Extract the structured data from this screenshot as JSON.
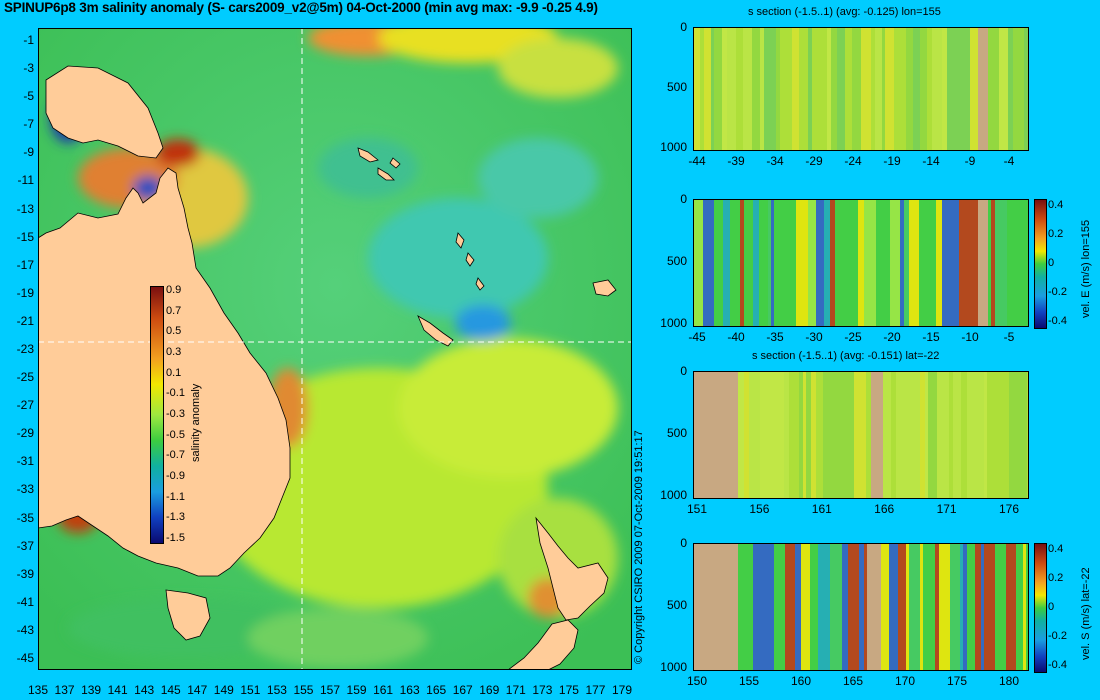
{
  "title": "SPINUP6p8 3m salinity anomaly (S- cars2009_v2@5m) 04-Oct-2000 (min avg max: -9.9 -0.25 4.9)",
  "copyright": "© Copyright CSIRO 2009   07-Oct-2009 19:51:17",
  "colors": {
    "background": "#00ccff",
    "land": "#ffcc99",
    "section_land": "#c8a882"
  },
  "chart_data": [
    {
      "type": "heatmap",
      "name": "salinity anomaly map",
      "x_ticks": [
        "135",
        "137",
        "139",
        "141",
        "143",
        "145",
        "147",
        "149",
        "151",
        "153",
        "155",
        "157",
        "159",
        "161",
        "163",
        "165",
        "167",
        "169",
        "171",
        "173",
        "175",
        "177",
        "179"
      ],
      "y_ticks": [
        "-1",
        "-3",
        "-5",
        "-7",
        "-9",
        "-11",
        "-13",
        "-15",
        "-17",
        "-19",
        "-21",
        "-23",
        "-25",
        "-27",
        "-29",
        "-31",
        "-33",
        "-35",
        "-37",
        "-39",
        "-41",
        "-43",
        "-45"
      ],
      "xlim": [
        135,
        180
      ],
      "ylim": [
        -45,
        0
      ],
      "section_lon": 155,
      "section_lat": -22,
      "colorbar": {
        "label": "salinity anomaly",
        "ticks": [
          "0.9",
          "0.7",
          "0.5",
          "0.3",
          "0.1",
          "-0.1",
          "-0.3",
          "-0.5",
          "-0.7",
          "-0.9",
          "-1.1",
          "-1.3",
          "-1.5"
        ]
      }
    },
    {
      "type": "heatmap",
      "title": "s section (-1.5..1) (avg: -0.125) lon=155",
      "x_ticks": [
        "-44",
        "-39",
        "-34",
        "-29",
        "-24",
        "-19",
        "-14",
        "-9",
        "-4"
      ],
      "y_ticks": [
        "0",
        "500",
        "1000"
      ]
    },
    {
      "type": "heatmap",
      "x_ticks": [
        "-45",
        "-40",
        "-35",
        "-30",
        "-25",
        "-20",
        "-15",
        "-10",
        "-5"
      ],
      "y_ticks": [
        "0",
        "500",
        "1000"
      ],
      "colorbar": {
        "label": "vel. E (m/s) lon=155",
        "ticks": [
          "0.4",
          "0.2",
          "0",
          "-0.2",
          "-0.4"
        ]
      }
    },
    {
      "type": "heatmap",
      "title": "s section (-1.5..1) (avg: -0.151) lat=-22",
      "x_ticks": [
        "151",
        "156",
        "161",
        "166",
        "171",
        "176"
      ],
      "y_ticks": [
        "0",
        "500",
        "1000"
      ]
    },
    {
      "type": "heatmap",
      "x_ticks": [
        "150",
        "155",
        "160",
        "165",
        "170",
        "175",
        "180"
      ],
      "y_ticks": [
        "0",
        "500",
        "1000"
      ],
      "colorbar": {
        "label": "vel. S (m/s) lat=-22",
        "ticks": [
          "0.4",
          "0.2",
          "0",
          "-0.2",
          "-0.4"
        ]
      }
    }
  ]
}
